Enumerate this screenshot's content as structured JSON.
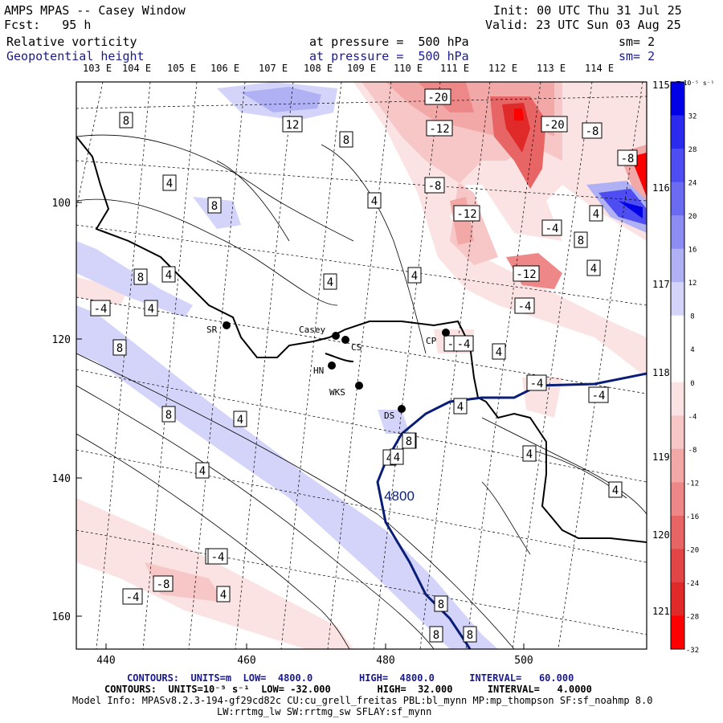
{
  "header": {
    "title": "AMPS MPAS -- Casey Window",
    "forecast": "Fcst:   95 h",
    "init": "Init: 00 UTC Thu 31 Jul 25",
    "valid": "Valid: 23 UTC Sun 03 Aug 25",
    "field1": {
      "name": "Relative vorticity",
      "level": "at pressure =  500 hPa",
      "smooth": "sm= 2"
    },
    "field2": {
      "name": "Geopotential height",
      "level": "at pressure =  500 hPa",
      "smooth": "sm= 2"
    }
  },
  "lon_labels_top": [
    "103 E",
    "104 E",
    "105 E",
    "106 E",
    "107 E",
    "108 E",
    "109 E",
    "110 E",
    "111 E",
    "112 E",
    "113 E",
    "114 E"
  ],
  "lon_labels_right": [
    "115 E",
    "116 E",
    "117 E",
    "118 E",
    "119 E",
    "120 E",
    "121 E"
  ],
  "y_ticks": [
    "100",
    "120",
    "140",
    "160"
  ],
  "x_ticks": [
    "440",
    "460",
    "480",
    "500"
  ],
  "stations": [
    {
      "id": "SR",
      "label": "SR"
    },
    {
      "id": "Casey",
      "label": "Casey"
    },
    {
      "id": "CS",
      "label": "CS"
    },
    {
      "id": "CP",
      "label": "CP"
    },
    {
      "id": "HN",
      "label": "HN"
    },
    {
      "id": "WKS",
      "label": "WKS"
    },
    {
      "id": "DS",
      "label": "DS"
    }
  ],
  "height_contour_label": "4800",
  "colorbar": {
    "unit": "10⁻⁵ s⁻¹",
    "labels": [
      "32",
      "28",
      "24",
      "20",
      "16",
      "12",
      "8",
      "4",
      "0",
      "-4",
      "-8",
      "-12",
      "-16",
      "-20",
      "-24",
      "-28",
      "-32"
    ],
    "colors": [
      "#0000e6",
      "#2b2bf0",
      "#4d4df2",
      "#6b6bf2",
      "#8c8cf2",
      "#b0b0f5",
      "#d4d4fa",
      "#ffffff",
      "#ffffff",
      "#fbe3e3",
      "#f7c6c6",
      "#f3a8a8",
      "#ee8888",
      "#e86565",
      "#e24545",
      "#e02a2a",
      "#ff0000"
    ]
  },
  "contour_labels": [
    "8",
    "12",
    "8",
    "4",
    "8",
    "4",
    "8",
    "4",
    "4",
    "4",
    "4",
    "-4",
    "4",
    "8",
    "4",
    "8",
    "4",
    "-4",
    "4",
    "4",
    "4",
    "-4",
    "-4",
    "4",
    "4",
    "4",
    "4",
    "4",
    "4",
    "8",
    "-20",
    "-12",
    "-8",
    "-12",
    "-20",
    "-8",
    "-8",
    "-4",
    "8",
    "-4",
    "4",
    "-12",
    "-4",
    "-4",
    "-4",
    "-8",
    "-4",
    "-4",
    "8",
    "8",
    "8"
  ],
  "footer": {
    "line1": "CONTOURS:  UNITS=m  LOW=  4800.0        HIGH=  4800.0      INTERVAL=   60.000",
    "line2": "CONTOURS:  UNITS=10⁻⁵ s⁻¹  LOW= -32.000        HIGH=  32.000      INTERVAL=   4.0000",
    "line3": "Model Info: MPASv8.2.3-194-gf29cd82c CU:cu_grell_freitas PBL:bl_mynn MP:mp_thompson SF:sf_noahmp 8.0",
    "line4": "LW:rrtmg_lw SW:rrtmg_sw SFLAY:sf_mynn"
  }
}
